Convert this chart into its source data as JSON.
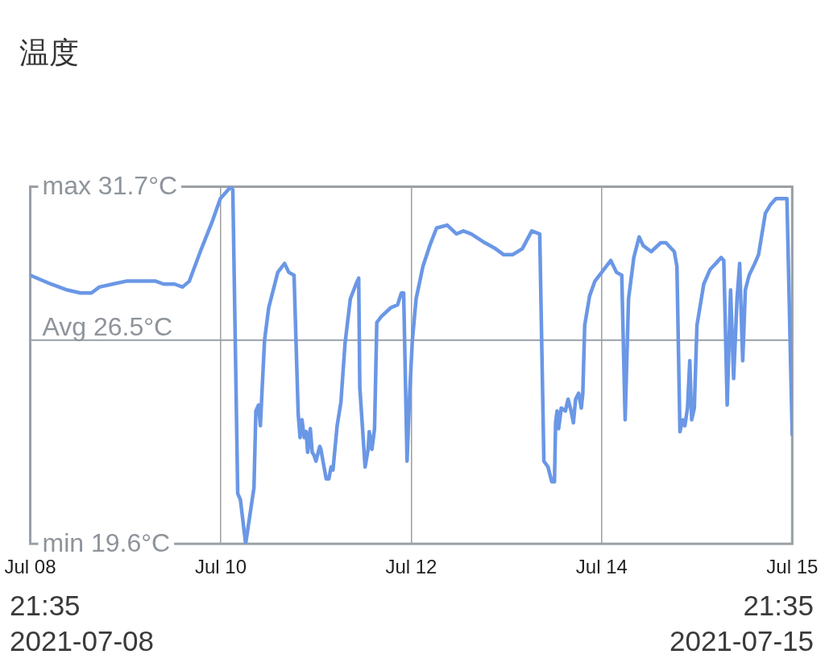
{
  "chart_data": {
    "type": "line",
    "title": "温度",
    "x": [
      "2021-07-08T21:35",
      "2021-07-09T02:10",
      "2021-07-09T05:45",
      "2021-07-09T08:40",
      "2021-07-09T11:05",
      "2021-07-09T12:50",
      "2021-07-09T15:45",
      "2021-07-09T18:45",
      "2021-07-09T21:40",
      "2021-07-10T01:15",
      "2021-07-10T03:00",
      "2021-07-10T05:25",
      "2021-07-10T07:10",
      "2021-07-10T08:40",
      "2021-07-10T11:20",
      "2021-07-10T13:40",
      "2021-07-10T15:30",
      "2021-07-10T17:50",
      "2021-07-10T18:15",
      "2021-07-10T19:20",
      "2021-07-10T19:55",
      "2021-07-10T21:05",
      "2021-07-10T22:55",
      "2021-07-10T23:20",
      "2021-07-10T23:55",
      "2021-07-11T00:20",
      "2021-07-11T00:40",
      "2021-07-11T01:15",
      "2021-07-11T02:10",
      "2021-07-11T04:10",
      "2021-07-11T05:40",
      "2021-07-11T06:35",
      "2021-07-11T07:45",
      "2021-07-11T08:40",
      "2021-07-11T09:05",
      "2021-07-11T09:30",
      "2021-07-11T10:00",
      "2021-07-11T10:25",
      "2021-07-11T10:45",
      "2021-07-11T11:20",
      "2021-07-11T11:45",
      "2021-07-11T12:10",
      "2021-07-11T12:35",
      "2021-07-11T13:25",
      "2021-07-11T13:40",
      "2021-07-11T14:50",
      "2021-07-11T15:25",
      "2021-07-11T15:55",
      "2021-07-11T16:20",
      "2021-07-11T17:15",
      "2021-07-11T18:05",
      "2021-07-11T19:00",
      "2021-07-11T20:10",
      "2021-07-11T21:25",
      "2021-07-11T22:00",
      "2021-07-11T22:15",
      "2021-07-11T23:25",
      "2021-07-12T00:05",
      "2021-07-12T00:20",
      "2021-07-12T00:55",
      "2021-07-12T01:30",
      "2021-07-12T02:00",
      "2021-07-12T03:00",
      "2021-07-12T05:05",
      "2021-07-12T06:35",
      "2021-07-12T07:25",
      "2021-07-12T07:55",
      "2021-07-12T08:40",
      "2021-07-12T09:15",
      "2021-07-12T09:50",
      "2021-07-12T10:40",
      "2021-07-12T12:10",
      "2021-07-12T13:40",
      "2021-07-12T15:10",
      "2021-07-12T17:30",
      "2021-07-12T19:35",
      "2021-07-12T21:05",
      "2021-07-12T22:50",
      "2021-07-13T01:50",
      "2021-07-13T04:10",
      "2021-07-13T05:55",
      "2021-07-13T08:00",
      "2021-07-13T10:05",
      "2021-07-13T12:10",
      "2021-07-13T13:55",
      "2021-07-13T14:50",
      "2021-07-13T15:45",
      "2021-07-13T16:35",
      "2021-07-13T17:10",
      "2021-07-13T17:25",
      "2021-07-13T17:45",
      "2021-07-13T18:05",
      "2021-07-13T18:40",
      "2021-07-13T19:35",
      "2021-07-13T20:10",
      "2021-07-13T20:50",
      "2021-07-13T21:20",
      "2021-07-13T21:50",
      "2021-07-13T22:30",
      "2021-07-13T23:05",
      "2021-07-13T23:25",
      "2021-07-13T23:50",
      "2021-07-14T00:55",
      "2021-07-14T02:05",
      "2021-07-14T03:35",
      "2021-07-14T05:35",
      "2021-07-14T06:50",
      "2021-07-14T08:00",
      "2021-07-14T08:45",
      "2021-07-14T09:30",
      "2021-07-14T10:40",
      "2021-07-14T11:50",
      "2021-07-14T12:45",
      "2021-07-14T14:30",
      "2021-07-14T16:35",
      "2021-07-14T17:45",
      "2021-07-14T19:35",
      "2021-07-14T20:10",
      "2021-07-14T20:50",
      "2021-07-14T21:25",
      "2021-07-14T21:55",
      "2021-07-14T22:30",
      "2021-07-14T23:00",
      "2021-07-14T23:25",
      "2021-07-15T00:00",
      "2021-07-15T00:35",
      "2021-07-15T02:05",
      "2021-07-15T03:30",
      "2021-07-15T04:45",
      "2021-07-15T05:55",
      "2021-07-15T06:30",
      "2021-07-15T07:15",
      "2021-07-15T08:00",
      "2021-07-15T08:40",
      "2021-07-15T09:25",
      "2021-07-15T10:00",
      "2021-07-15T10:40",
      "2021-07-15T11:15",
      "2021-07-15T12:05",
      "2021-07-15T13:20",
      "2021-07-15T14:10",
      "2021-07-15T15:40",
      "2021-07-15T16:50",
      "2021-07-15T18:00",
      "2021-07-15T20:25",
      "2021-07-15T21:35"
    ],
    "values": [
      28.7,
      28.4,
      28.2,
      28.1,
      28.1,
      28.3,
      28.4,
      28.5,
      28.5,
      28.5,
      28.4,
      28.4,
      28.3,
      28.5,
      29.6,
      30.5,
      31.3,
      31.7,
      31.6,
      21.3,
      21.1,
      19.6,
      21.5,
      24.1,
      24.3,
      23.6,
      24.7,
      26.5,
      27.6,
      28.8,
      29.1,
      28.8,
      28.7,
      24.0,
      23.2,
      23.8,
      23.2,
      23.4,
      22.7,
      23.5,
      22.7,
      22.6,
      22.4,
      22.9,
      22.8,
      21.8,
      21.8,
      22.2,
      22.1,
      23.6,
      24.4,
      26.4,
      27.9,
      28.4,
      28.6,
      24.9,
      22.2,
      22.8,
      23.4,
      22.8,
      23.5,
      27.1,
      27.3,
      27.6,
      27.7,
      28.1,
      28.1,
      22.4,
      24.7,
      26.5,
      27.9,
      29.0,
      29.7,
      30.3,
      30.4,
      30.1,
      30.2,
      30.1,
      29.8,
      29.6,
      29.4,
      29.4,
      29.6,
      30.2,
      30.1,
      22.4,
      22.2,
      21.7,
      21.7,
      23.7,
      24.1,
      23.5,
      24.2,
      24.1,
      24.5,
      24.1,
      23.7,
      24.5,
      24.7,
      24.2,
      24.7,
      27.0,
      28.0,
      28.5,
      28.8,
      29.2,
      28.8,
      28.7,
      23.8,
      27.9,
      29.3,
      30.0,
      29.7,
      29.5,
      29.8,
      29.8,
      29.5,
      29.0,
      23.4,
      23.8,
      23.6,
      24.2,
      25.8,
      23.8,
      24.2,
      27.0,
      28.4,
      28.9,
      29.1,
      29.3,
      29.2,
      24.3,
      28.2,
      25.2,
      27.9,
      29.1,
      25.8,
      28.2,
      28.7,
      29.1,
      29.4,
      30.8,
      31.1,
      31.3,
      31.3,
      23.3
    ],
    "color": "#6a97e6",
    "marker": "none",
    "line_style": "solid",
    "xlim": [
      "2021-07-08T21:35",
      "2021-07-15T21:35"
    ],
    "xticks": [
      {
        "value": "2021-07-08T21:35",
        "label": "Jul 08"
      },
      {
        "value": "2021-07-10T15:35",
        "label": "Jul 10"
      },
      {
        "value": "2021-07-12T09:35",
        "label": "Jul 12"
      },
      {
        "value": "2021-07-14T03:35",
        "label": "Jul 14"
      },
      {
        "value": "2021-07-15T21:35",
        "label": "Jul 15"
      }
    ],
    "ylim": [
      19.6,
      31.7
    ],
    "yticks": [
      {
        "value": 31.7,
        "label": "31.7°C"
      },
      {
        "value": 19.6,
        "label": "19.6°C"
      }
    ],
    "ref_lines": [
      {
        "axis": "y",
        "value": 26.5,
        "label": "Avg 26.5°C"
      }
    ],
    "grid": "x",
    "annotations": [
      "max",
      "min",
      "21:35\n2021-07-08",
      "21:35\n2021-07-15"
    ]
  }
}
